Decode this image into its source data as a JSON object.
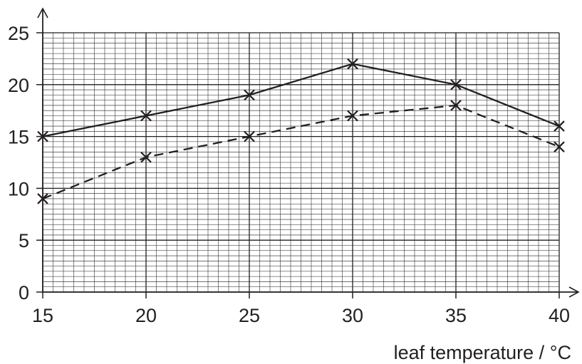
{
  "chart_data": {
    "type": "line",
    "title": "",
    "xlabel": "leaf temperature / °C",
    "ylabel": "",
    "xlim": [
      15,
      40
    ],
    "ylim": [
      0,
      25
    ],
    "x_ticks": [
      15,
      20,
      25,
      30,
      35,
      40
    ],
    "y_ticks": [
      0,
      5,
      10,
      15,
      20,
      25
    ],
    "x_tick_labels": [
      "15",
      "20",
      "25",
      "30",
      "35",
      "40"
    ],
    "y_tick_labels": [
      "0",
      "5",
      "10",
      "15",
      "20",
      "25"
    ],
    "grid": true,
    "series": [
      {
        "style": "solid",
        "marker": "x",
        "x": [
          15,
          20,
          25,
          30,
          35,
          40
        ],
        "y": [
          15,
          17,
          19,
          22,
          20,
          16
        ]
      },
      {
        "style": "dashed",
        "marker": "x",
        "x": [
          15,
          20,
          25,
          30,
          35,
          40
        ],
        "y": [
          9,
          13,
          15,
          17,
          18,
          14
        ]
      }
    ],
    "colors": {
      "ink": "#231f20"
    }
  }
}
